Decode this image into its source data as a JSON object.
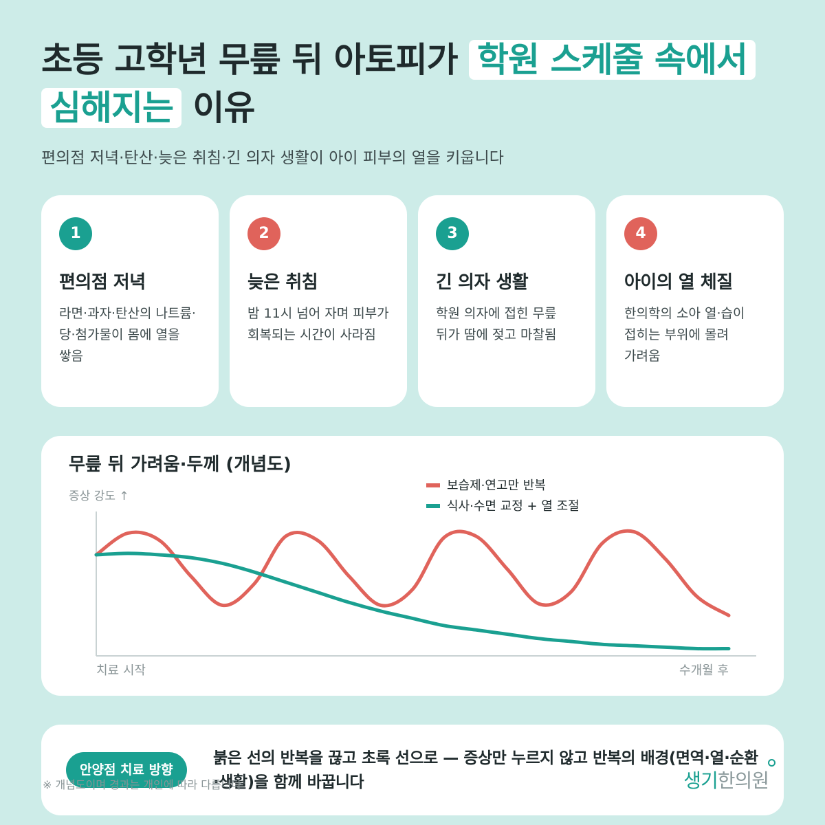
{
  "title": {
    "part1": "초등 고학년 무릎 뒤 아토피가 ",
    "highlight": "학원 스케줄 속에서 심해지는",
    "part2": " 이유"
  },
  "subtitle": "편의점 저녁·탄산·늦은 취침·긴 의자 생활이 아이 피부의 열을 키웁니다",
  "cards": [
    {
      "number": "1",
      "title": "편의점 저녁",
      "desc": "라면·과자·탄산의 나트륨·당·첨가물이 몸에 열을 쌓음"
    },
    {
      "number": "2",
      "title": "늦은 취침",
      "desc": "밤 11시 넘어 자며 피부가 회복되는 시간이 사라짐"
    },
    {
      "number": "3",
      "title": "긴 의자 생활",
      "desc": "학원 의자에 접힌 무릎 뒤가 땀에 젖고 마찰됨"
    },
    {
      "number": "4",
      "title": "아이의 열 체질",
      "desc": "한의학의 소아 열·습이 접히는 부위에 몰려 가려움"
    }
  ],
  "colors": {
    "teal": "#1aa091",
    "red": "#e0635b",
    "background": "#cdece8"
  },
  "chart_data": {
    "type": "line",
    "title": "무릎 뒤 가려움·두께 (개념도)",
    "ylabel": "증상 강도 ↑",
    "x_start_label": "치료 시작",
    "x_end_label": "수개월 후",
    "legend_position": "top-center",
    "grid": false,
    "x": [
      0,
      0.05,
      0.1,
      0.15,
      0.2,
      0.25,
      0.3,
      0.35,
      0.4,
      0.45,
      0.5,
      0.55,
      0.6,
      0.65,
      0.7,
      0.75,
      0.8,
      0.85,
      0.9,
      0.95,
      1.0
    ],
    "ylim": [
      0,
      1
    ],
    "series": [
      {
        "name": "보습제·연고만 반복",
        "color": "#e0635b",
        "values": [
          0.7,
          0.85,
          0.8,
          0.55,
          0.35,
          0.5,
          0.83,
          0.8,
          0.55,
          0.35,
          0.46,
          0.82,
          0.83,
          0.6,
          0.36,
          0.44,
          0.78,
          0.86,
          0.67,
          0.41,
          0.28
        ]
      },
      {
        "name": "식사·수면 교정 + 열 조절",
        "color": "#1aa091",
        "values": [
          0.7,
          0.71,
          0.7,
          0.68,
          0.64,
          0.58,
          0.51,
          0.44,
          0.37,
          0.31,
          0.26,
          0.21,
          0.18,
          0.15,
          0.12,
          0.1,
          0.08,
          0.07,
          0.06,
          0.05,
          0.05
        ]
      }
    ]
  },
  "bottom": {
    "pill": "안양점 치료 방향",
    "message": "붉은 선의 반복을 끊고 초록 선으로 — 증상만 누르지 않고 반복의 배경(면역·열·순환·생활)을 함께 바꿉니다",
    "note": "※ 개념도이며 경과는 개인에 따라 다릅니다",
    "brand1": "생기",
    "brand2": "한의원"
  }
}
